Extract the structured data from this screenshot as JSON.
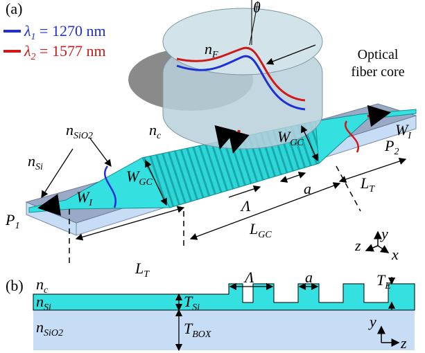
{
  "panel_a": {
    "label": "(a)",
    "legend": [
      {
        "main": "λ",
        "sub": "1",
        "text": " = 1270 nm"
      },
      {
        "main": "λ",
        "sub": "2",
        "text": " = 1577 nm"
      }
    ],
    "theta": {
      "main": "θ"
    },
    "n_fiber": {
      "main": "n",
      "sub": "F"
    },
    "fiber_callout": [
      "Optical",
      "fiber core"
    ],
    "n_sio2": {
      "main": "n",
      "sub": "SiO2"
    },
    "n_c": {
      "main": "n",
      "sub": "c"
    },
    "n_si": {
      "main": "n",
      "sub": "Si"
    },
    "w_i_left": {
      "main": "W",
      "sub": "I"
    },
    "w_gc_left": {
      "main": "W",
      "sub": "GC"
    },
    "w_gc_right": {
      "main": "W",
      "sub": "GC"
    },
    "w_i_right": {
      "main": "W",
      "sub": "I"
    },
    "port_2": {
      "main": "P",
      "sub": "2"
    },
    "port_1": {
      "main": "P",
      "sub": "1"
    },
    "period": {
      "main": "Λ"
    },
    "a": {
      "main": "a"
    },
    "l_t_right": {
      "main": "L",
      "sub": "T"
    },
    "l_gc": {
      "main": "L",
      "sub": "GC"
    },
    "l_t_left": {
      "main": "L",
      "sub": "T"
    },
    "axis_z": {
      "main": "z"
    },
    "axis_y": {
      "main": "y"
    },
    "axis_x": {
      "main": "x"
    }
  },
  "panel_b": {
    "label": "(b)",
    "n_c": {
      "main": "n",
      "sub": "c"
    },
    "n_si": {
      "main": "n",
      "sub": "Si"
    },
    "t_si": {
      "main": "T",
      "sub": "Si"
    },
    "period": {
      "main": "Λ"
    },
    "a": {
      "main": "a"
    },
    "t_e": {
      "main": "T",
      "sub": "E"
    },
    "n_sio2": {
      "main": "n",
      "sub": "SiO2"
    },
    "t_box": {
      "main": "T",
      "sub": "BOX"
    },
    "axis_y": {
      "main": "y"
    },
    "axis_z": {
      "main": "z"
    }
  }
}
